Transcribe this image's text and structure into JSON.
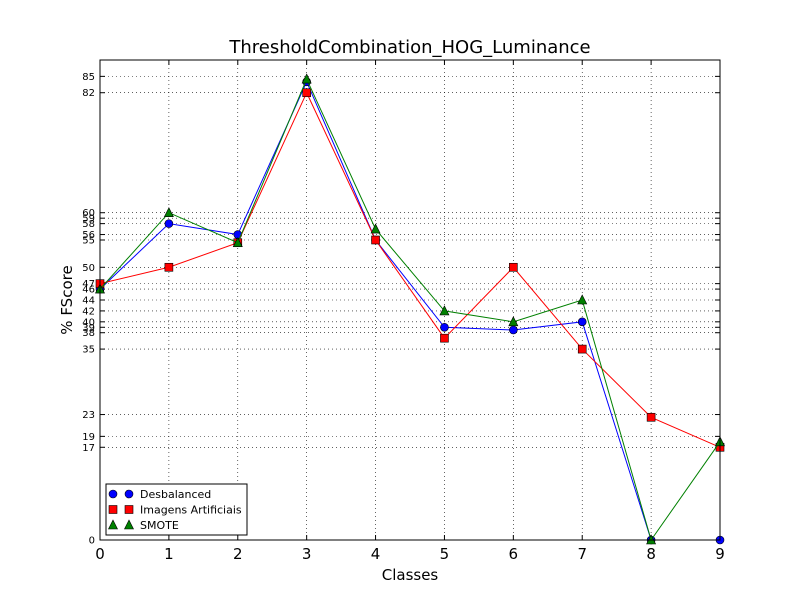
{
  "chart_data": {
    "type": "line",
    "title": "ThresholdCombination_HOG_Luminance",
    "xlabel": "Classes",
    "ylabel": "% FScore",
    "x": [
      0,
      1,
      2,
      3,
      4,
      5,
      6,
      7,
      8,
      9
    ],
    "xlim": [
      0,
      9
    ],
    "ylim": [
      0,
      88
    ],
    "x_ticks": [
      "0",
      "1",
      "2",
      "3",
      "4",
      "5",
      "6",
      "7",
      "8",
      "9"
    ],
    "y_ticks": [
      0,
      17,
      19,
      23,
      35,
      38,
      39,
      40,
      42,
      44,
      46,
      47,
      50,
      55,
      56,
      58,
      59,
      60,
      82,
      85
    ],
    "grid": true,
    "legend_position": "lower-left",
    "series": [
      {
        "name": "Desbalanced",
        "color": "#0000ff",
        "marker": "circle",
        "values": [
          46,
          58,
          56,
          84,
          55,
          39,
          38.5,
          40,
          0,
          0
        ]
      },
      {
        "name": "Imagens Artificiais",
        "color": "#ff0000",
        "marker": "square",
        "values": [
          47,
          50,
          54.5,
          82,
          55,
          37,
          50,
          35,
          22.5,
          17
        ]
      },
      {
        "name": "SMOTE",
        "color": "#008000",
        "marker": "triangle",
        "values": [
          46,
          60,
          54.5,
          84.5,
          57,
          42,
          40,
          44,
          0,
          18
        ]
      }
    ]
  }
}
